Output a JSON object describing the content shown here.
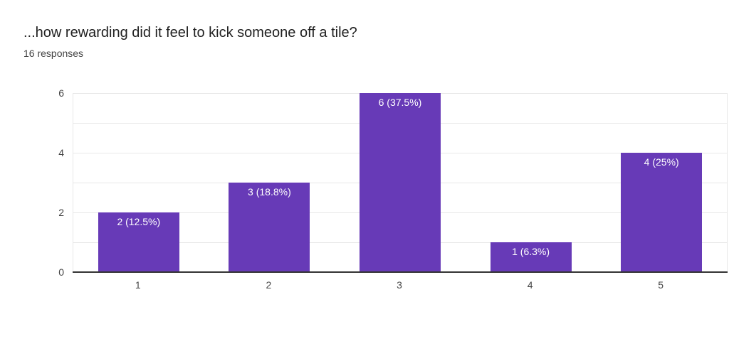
{
  "header": {
    "title": "...how rewarding did it feel to kick someone off a tile?",
    "subtitle": "16 responses"
  },
  "chart_data": {
    "type": "bar",
    "title": "...how rewarding did it feel to kick someone off a tile?",
    "subtitle": "16 responses",
    "categories": [
      "1",
      "2",
      "3",
      "4",
      "5"
    ],
    "values": [
      2,
      3,
      6,
      1,
      4
    ],
    "bar_labels": [
      "2 (12.5%)",
      "3 (18.8%)",
      "6 (37.5%)",
      "1 (6.3%)",
      "4 (25%)"
    ],
    "xlabel": "",
    "ylabel": "",
    "ylim": [
      0,
      6
    ],
    "yticks": [
      0,
      2,
      4,
      6
    ],
    "gridline_values": [
      1,
      2,
      3,
      4,
      5,
      6
    ],
    "grid": true,
    "legend": "none",
    "colors": {
      "bar": "#673ab7",
      "bar_label_text": "#ffffff",
      "gridline": "#e8e8e8",
      "baseline": "#333333",
      "title_text": "#212121",
      "tick_text": "#444444"
    }
  }
}
